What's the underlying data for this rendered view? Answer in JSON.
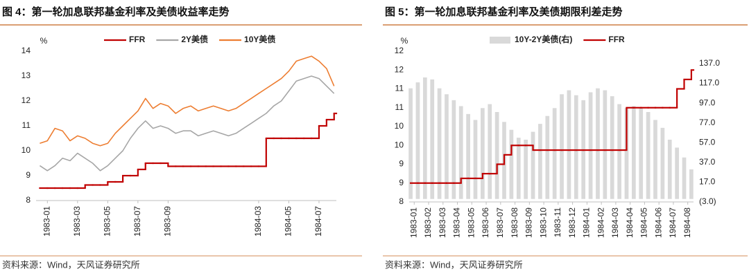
{
  "chart_data": [
    {
      "type": "line",
      "title": "图 4：第一轮加息联邦基金利率及美债收益率走势",
      "y_label": "%",
      "source": "资料来源：Wind，天风证券研究所",
      "x": [
        -0.5,
        0,
        0.5,
        1,
        1.5,
        2,
        2.5,
        3,
        3.5,
        4,
        4.5,
        5,
        5.5,
        6,
        6.5,
        7,
        7.5,
        8,
        8.5,
        9,
        9.5,
        10,
        10.5,
        11,
        11.5,
        12,
        12.5,
        13,
        13.5,
        14,
        14.5,
        15,
        15.5,
        16,
        16.5,
        17,
        17.5,
        18,
        18.5,
        19
      ],
      "xlim": [
        -0.75,
        19.15
      ],
      "xticks": [
        {
          "value": 0,
          "label": "1983-01"
        },
        {
          "value": 2,
          "label": "1983-03"
        },
        {
          "value": 4,
          "label": "1983-05"
        },
        {
          "value": 6,
          "label": "1983-07"
        },
        {
          "value": 8,
          "label": "1983-09"
        },
        {
          "value": 14,
          "label": "1984-03"
        },
        {
          "value": 16,
          "label": "1984-05"
        },
        {
          "value": 18,
          "label": "1984-07"
        }
      ],
      "ylim": [
        8,
        14
      ],
      "yticks": [
        8,
        9,
        10,
        11,
        12,
        13,
        14
      ],
      "series": [
        {
          "name": "FFR",
          "color": "#c00000",
          "drawstyle": "steps-post",
          "values": [
            8.5,
            8.5,
            8.5,
            8.5,
            8.5,
            8.5,
            8.625,
            8.625,
            8.625,
            8.75,
            8.75,
            9.0,
            9.0,
            9.25,
            9.5,
            9.5,
            9.5,
            9.375,
            9.375,
            9.375,
            9.375,
            9.375,
            9.375,
            9.375,
            9.375,
            9.375,
            9.375,
            9.375,
            9.375,
            9.375,
            10.5,
            10.5,
            10.5,
            10.5,
            10.5,
            10.5,
            10.5,
            11.0,
            11.25,
            11.5
          ]
        },
        {
          "name": "2Y美债",
          "color": "#a6a6a6",
          "values": [
            9.4,
            9.2,
            9.4,
            9.7,
            9.6,
            9.9,
            9.7,
            9.5,
            9.2,
            9.4,
            9.7,
            10.0,
            10.5,
            10.9,
            11.2,
            10.9,
            11.0,
            10.9,
            10.7,
            10.8,
            10.8,
            10.6,
            10.7,
            10.8,
            10.7,
            10.6,
            10.7,
            10.9,
            11.1,
            11.3,
            11.5,
            11.8,
            12.0,
            12.4,
            12.8,
            12.9,
            13.0,
            12.9,
            12.6,
            12.3
          ]
        },
        {
          "name": "10Y美债",
          "color": "#ed7d31",
          "values": [
            10.3,
            10.4,
            10.9,
            10.8,
            10.4,
            10.6,
            10.5,
            10.3,
            10.2,
            10.3,
            10.7,
            11.0,
            11.3,
            11.6,
            12.1,
            11.7,
            11.9,
            11.8,
            11.5,
            11.7,
            11.8,
            11.6,
            11.7,
            11.8,
            11.7,
            11.6,
            11.7,
            11.9,
            12.1,
            12.3,
            12.5,
            12.7,
            12.9,
            13.2,
            13.6,
            13.7,
            13.8,
            13.6,
            13.3,
            12.6
          ]
        }
      ]
    },
    {
      "type": "bar_line",
      "title": "图 5：第一轮加息联邦基金利率及美债期限利差走势",
      "y_label": "%",
      "source": "资料来源：Wind，天风证券研究所",
      "x": [
        -0.25,
        0.25,
        0.75,
        1.25,
        1.75,
        2.25,
        2.75,
        3.25,
        3.75,
        4.25,
        4.75,
        5.25,
        5.75,
        6.25,
        6.75,
        7.25,
        7.75,
        8.25,
        8.75,
        9.25,
        9.75,
        10.25,
        10.75,
        11.25,
        11.75,
        12.25,
        12.75,
        13.25,
        13.75,
        14.25,
        14.75,
        15.25,
        15.75,
        16.25,
        16.75,
        17.25,
        17.75,
        18.25,
        18.75,
        19.25
      ],
      "xlim": [
        -0.35,
        19.4
      ],
      "xticks": [
        {
          "value": 0,
          "label": "1983-01"
        },
        {
          "value": 1,
          "label": "1983-02"
        },
        {
          "value": 2,
          "label": "1983-03"
        },
        {
          "value": 3,
          "label": "1983-04"
        },
        {
          "value": 4,
          "label": "1983-05"
        },
        {
          "value": 5,
          "label": "1983-06"
        },
        {
          "value": 6,
          "label": "1983-07"
        },
        {
          "value": 7,
          "label": "1983-08"
        },
        {
          "value": 8,
          "label": "1983-09"
        },
        {
          "value": 9,
          "label": "1983-10"
        },
        {
          "value": 10,
          "label": "1983-11"
        },
        {
          "value": 11,
          "label": "1983-12"
        },
        {
          "value": 12,
          "label": "1984-01"
        },
        {
          "value": 13,
          "label": "1984-02"
        },
        {
          "value": 14,
          "label": "1984-03"
        },
        {
          "value": 15,
          "label": "1984-04"
        },
        {
          "value": 16,
          "label": "1984-05"
        },
        {
          "value": 17,
          "label": "1984-06"
        },
        {
          "value": 18,
          "label": "1984-07"
        },
        {
          "value": 19,
          "label": "1984-08"
        }
      ],
      "ylim": [
        8,
        12
      ],
      "yticks": [
        8,
        {
          "value": 8.5,
          "label": "9"
        },
        9,
        {
          "value": 9.5,
          "label": "10"
        },
        10,
        {
          "value": 10.5,
          "label": "11"
        },
        11,
        {
          "value": 11.5,
          "label": "12"
        },
        12
      ],
      "y2lim": [
        -3,
        149.6
      ],
      "y2ticks": [
        {
          "value": -3,
          "label": "(3.0)"
        },
        {
          "value": 17,
          "label": "17.0"
        },
        {
          "value": 37,
          "label": "37.0"
        },
        {
          "value": 57,
          "label": "57.0"
        },
        {
          "value": 77,
          "label": "77.0"
        },
        {
          "value": 97,
          "label": "97.0"
        },
        {
          "value": 117,
          "label": "117.0"
        },
        {
          "value": 137,
          "label": "137.0"
        }
      ],
      "y2_negative_label_color": "#ff0000",
      "series": [
        {
          "name": "10Y-2Y美债(右)",
          "color": "#d9d9d9",
          "type": "bar",
          "axis": "y2",
          "values": [
            112,
            118,
            123,
            121,
            112,
            106,
            100,
            94,
            86,
            80,
            92,
            96,
            88,
            78,
            70,
            62,
            60,
            68,
            76,
            84,
            92,
            106,
            110,
            105,
            100,
            108,
            112,
            110,
            104,
            96,
            92,
            94,
            92,
            88,
            80,
            72,
            60,
            52,
            42,
            30
          ]
        },
        {
          "name": "FFR",
          "color": "#c00000",
          "drawstyle": "steps-post",
          "values": [
            8.5,
            8.5,
            8.5,
            8.5,
            8.5,
            8.5,
            8.5,
            8.625,
            8.625,
            8.625,
            8.75,
            8.75,
            9.0,
            9.25,
            9.5,
            9.5,
            9.5,
            9.375,
            9.375,
            9.375,
            9.375,
            9.375,
            9.375,
            9.375,
            9.375,
            9.375,
            9.375,
            9.375,
            9.375,
            9.375,
            10.5,
            10.5,
            10.5,
            10.5,
            10.5,
            10.5,
            10.5,
            11.0,
            11.25,
            11.5
          ]
        }
      ]
    }
  ]
}
